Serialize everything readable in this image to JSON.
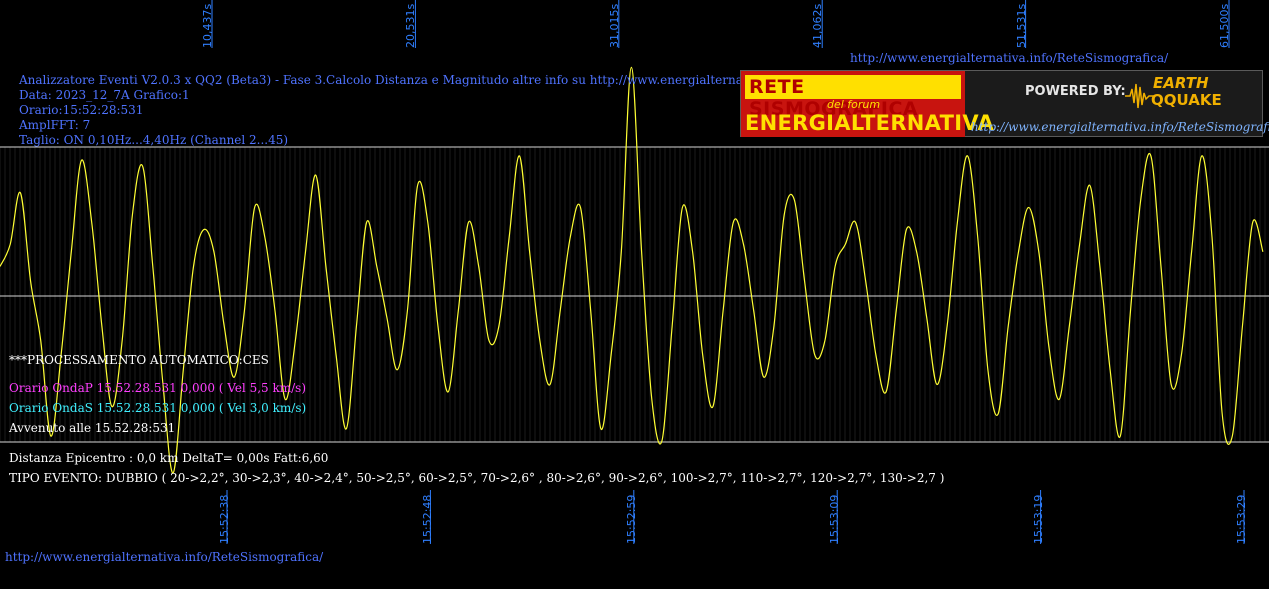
{
  "header": {
    "line1": "Analizzatore Eventi V2.0.3 x QQ2 (Beta3) - Fase 3.Calcolo Distanza e Magnitudo altre info su http://www.energialternativa.info/ReteSism",
    "line2": "Data: 2023_12_7A Grafico:1",
    "line3": "Orario:15:52:28:531",
    "line4": "AmplFFT: 7",
    "line5": "Taglio: ON 0,10Hz...4,40Hz       (Channel 2...45)",
    "url_top": "http://www.energialternativa.info/ReteSismografica/",
    "url_bottom": "http://www.energialternativa.info/ReteSismografica/"
  },
  "logo": {
    "line1": "RETE SISMOGRAFICA",
    "line2": "del forum",
    "line3": "ENERGIALTERNATIVA",
    "powered": "POWERED BY:",
    "brand1": "EARTH",
    "brand2": "QQUAKE",
    "url": "http://www.energialternativa.info/ReteSismografica"
  },
  "analysis": {
    "auto": "***PROCESSAMENTO AUTOMATICO:CES",
    "onda_p": "Orario OndaP 15.52.28.531  0,000  ( Vel 5,5 km/s)",
    "onda_s": "Orario OndaS 15.52.28.531  0,000  ( Vel 3,0 km/s)",
    "avvenuto": "Avvenuto alle 15.52.28:531",
    "distanza": "Distanza Epicentro : 0,0 km DeltaT= 0,00s  Fatt:6,60",
    "tipo": "TIPO EVENTO: DUBBIO ( 20->2,2°, 30->2,3°, 40->2,4°, 50->2,5°, 60->2,5°, 70->2,6° , 80->2,6°, 90->2,6°, 100->2,7°, 110->2,7°, 120->2,7°, 130->2,7 )"
  },
  "colors": {
    "trace": "#ffff33",
    "grid": "#d6d6d6",
    "minorGrid": "#3a3a3a",
    "tick": "#2f7fff"
  },
  "chart_data": {
    "type": "line",
    "title": "",
    "xlabel": "",
    "ylabel": "",
    "x_ticks_top": [
      "10,437s",
      "20,531s",
      "31,015s",
      "41,062s",
      "51,531s",
      "61,500s"
    ],
    "x_ticks_bottom": [
      "15:52:38",
      "15:52:48",
      "15:52:59",
      "15:53:09",
      "15:53:19",
      "15:53:29"
    ],
    "x_range_s": [
      0,
      62.3
    ],
    "y_range": [
      -1,
      1
    ],
    "grid": true,
    "series": [
      {
        "x_s": [
          0,
          0.5,
          1,
          1.5,
          2,
          2.5,
          3,
          3.5,
          4,
          4.5,
          5,
          5.5,
          6,
          6.5,
          7,
          7.5,
          8,
          8.5,
          9,
          9.5,
          10,
          10.5,
          11,
          11.5,
          12,
          12.5,
          13,
          13.5,
          14,
          14.5,
          15,
          15.5,
          16,
          16.5,
          17,
          17.5,
          18,
          18.5,
          19,
          19.5,
          20,
          20.5,
          21,
          21.5,
          22,
          22.5,
          23,
          23.5,
          24,
          24.5,
          25,
          25.5,
          26,
          26.5,
          27,
          27.5,
          28,
          28.5,
          29,
          29.5,
          30,
          30.5,
          31,
          31.5,
          32,
          32.5,
          33,
          33.5,
          34,
          34.5,
          35,
          35.5,
          36,
          36.5,
          37,
          37.5,
          38,
          38.5,
          39,
          39.5,
          40,
          40.5,
          41,
          41.5,
          42,
          42.5,
          43,
          43.5,
          44,
          44.5,
          45,
          45.5,
          46,
          46.5,
          47,
          47.5,
          48,
          48.5,
          49,
          49.5,
          50,
          50.5,
          51,
          51.5,
          52,
          52.5,
          53,
          53.5,
          54,
          54.5,
          55,
          55.5,
          56,
          56.5,
          57,
          57.5,
          58,
          58.5,
          59,
          59.5,
          60,
          60.5,
          61,
          61.5,
          62
        ],
        "y": [
          0.2,
          0.35,
          0.7,
          0.1,
          -0.3,
          -0.95,
          -0.4,
          0.3,
          0.92,
          0.5,
          -0.2,
          -0.75,
          -0.3,
          0.55,
          0.88,
          0.2,
          -0.6,
          -1.2,
          -0.5,
          0.2,
          0.45,
          0.3,
          -0.2,
          -0.55,
          -0.1,
          0.6,
          0.4,
          -0.1,
          -0.7,
          -0.3,
          0.3,
          0.82,
          0.2,
          -0.4,
          -0.9,
          -0.2,
          0.5,
          0.2,
          -0.15,
          -0.5,
          -0.1,
          0.75,
          0.5,
          -0.2,
          -0.65,
          -0.1,
          0.5,
          0.2,
          -0.3,
          -0.2,
          0.4,
          0.95,
          0.3,
          -0.3,
          -0.6,
          -0.1,
          0.4,
          0.6,
          -0.1,
          -0.9,
          -0.4,
          0.3,
          1.55,
          0.3,
          -0.7,
          -0.98,
          -0.2,
          0.6,
          0.3,
          -0.4,
          -0.75,
          -0.1,
          0.5,
          0.35,
          -0.1,
          -0.55,
          -0.2,
          0.55,
          0.65,
          0.1,
          -0.4,
          -0.3,
          0.2,
          0.35,
          0.5,
          0.1,
          -0.4,
          -0.65,
          -0.1,
          0.45,
          0.3,
          -0.15,
          -0.6,
          -0.2,
          0.5,
          0.95,
          0.4,
          -0.5,
          -0.8,
          -0.2,
          0.3,
          0.6,
          0.3,
          -0.35,
          -0.7,
          -0.2,
          0.35,
          0.75,
          0.2,
          -0.5,
          -0.95,
          -0.1,
          0.65,
          0.95,
          0.2,
          -0.6,
          -0.4,
          0.3,
          0.95,
          0.4,
          -0.8,
          -0.95,
          -0.2,
          0.5,
          0.3
        ]
      }
    ]
  }
}
